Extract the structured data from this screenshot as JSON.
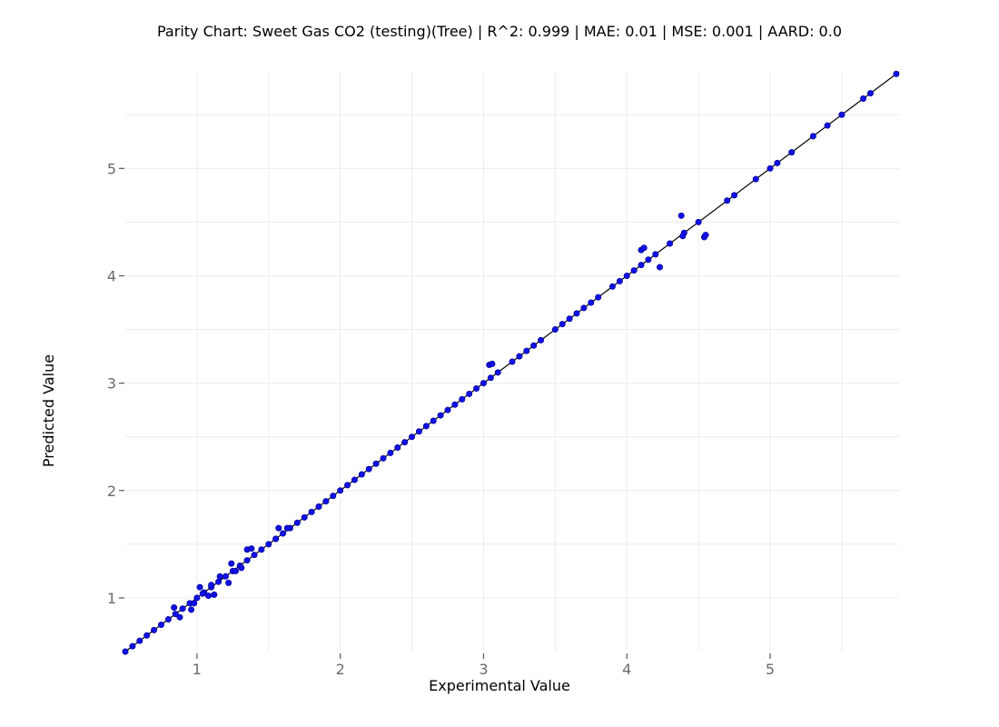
{
  "chart_data": {
    "type": "scatter",
    "title": "Parity Chart: Sweet Gas CO2 (testing)(Tree) | R^2: 0.999 | MAE: 0.01 | MSE: 0.001 | AARD: 0.0",
    "xlabel": "Experimental Value",
    "ylabel": "Predicted Value",
    "xlim": [
      0.5,
      5.9
    ],
    "ylim": [
      0.5,
      5.9
    ],
    "x_ticks": [
      "1",
      "2",
      "3",
      "4",
      "5"
    ],
    "y_ticks": [
      "1",
      "2",
      "3",
      "4",
      "5"
    ],
    "grid": true,
    "parity_line": [
      [
        0.5,
        0.5
      ],
      [
        5.9,
        5.9
      ]
    ],
    "colors": {
      "points": "#1010e6",
      "parity_line": "#000000",
      "grid": "#ececec"
    },
    "series": [
      {
        "x": [
          0.5,
          0.55,
          0.6,
          0.65,
          0.7,
          0.75,
          0.8,
          0.85,
          0.9,
          0.95,
          1.0,
          1.05,
          1.1,
          1.15,
          1.2,
          1.25,
          1.3,
          1.35,
          1.4,
          1.45,
          1.5,
          1.55,
          1.6,
          1.65,
          1.7,
          1.75,
          1.8,
          1.85,
          1.9,
          1.95,
          2.0,
          2.05,
          2.1,
          2.15,
          2.2,
          2.25,
          2.3,
          2.35,
          2.4,
          2.45,
          2.5,
          2.55,
          2.6,
          2.65,
          2.7,
          2.75,
          2.8,
          2.85,
          2.9,
          2.95,
          3.0,
          3.05,
          3.1,
          3.2,
          3.25,
          3.3,
          3.35,
          3.4,
          3.5,
          3.55,
          3.6,
          3.65,
          3.7,
          3.75,
          3.8,
          3.9,
          3.95,
          4.0,
          4.05,
          4.1,
          4.15,
          4.2,
          4.3,
          4.4,
          4.5,
          4.7,
          4.75,
          4.9,
          5.0,
          5.05,
          5.15,
          5.3,
          5.4,
          5.5,
          5.65,
          5.7,
          5.88,
          0.84,
          0.88,
          0.96,
          0.98,
          1.02,
          1.04,
          1.08,
          1.1,
          1.12,
          1.16,
          1.22,
          1.24,
          1.27,
          1.31,
          1.35,
          1.38,
          1.55,
          1.57,
          1.63,
          3.04,
          3.06,
          4.1,
          4.12,
          4.23,
          4.38,
          4.39,
          4.54,
          4.55
        ],
        "y": [
          0.5,
          0.55,
          0.6,
          0.65,
          0.7,
          0.75,
          0.8,
          0.85,
          0.9,
          0.95,
          1.0,
          1.05,
          1.1,
          1.15,
          1.2,
          1.25,
          1.3,
          1.35,
          1.4,
          1.45,
          1.5,
          1.55,
          1.6,
          1.65,
          1.7,
          1.75,
          1.8,
          1.85,
          1.9,
          1.95,
          2.0,
          2.05,
          2.1,
          2.15,
          2.2,
          2.25,
          2.3,
          2.35,
          2.4,
          2.45,
          2.5,
          2.55,
          2.6,
          2.65,
          2.7,
          2.75,
          2.8,
          2.85,
          2.9,
          2.95,
          3.0,
          3.05,
          3.1,
          3.2,
          3.25,
          3.3,
          3.35,
          3.4,
          3.5,
          3.55,
          3.6,
          3.65,
          3.7,
          3.75,
          3.8,
          3.9,
          3.95,
          4.0,
          4.05,
          4.1,
          4.15,
          4.2,
          4.3,
          4.4,
          4.5,
          4.7,
          4.75,
          4.9,
          5.0,
          5.05,
          5.15,
          5.3,
          5.4,
          5.5,
          5.65,
          5.7,
          5.88,
          0.91,
          0.82,
          0.89,
          0.95,
          1.1,
          1.04,
          1.02,
          1.12,
          1.03,
          1.2,
          1.14,
          1.32,
          1.25,
          1.28,
          1.45,
          1.46,
          1.55,
          1.65,
          1.65,
          3.17,
          3.18,
          4.24,
          4.26,
          4.08,
          4.56,
          4.37,
          4.36,
          4.38
        ]
      }
    ]
  }
}
